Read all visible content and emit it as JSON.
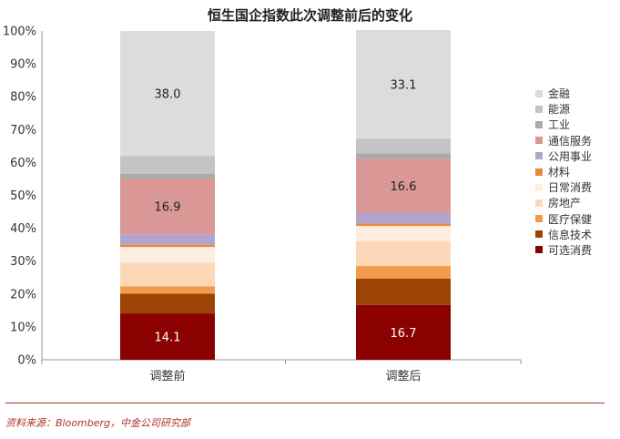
{
  "chart_data": {
    "type": "bar",
    "stacked": true,
    "title": "恒生国企指数此次调整前后的变化",
    "categories": [
      "调整前",
      "调整后"
    ],
    "ylim": [
      0,
      100
    ],
    "yticks": [
      "0%",
      "10%",
      "20%",
      "30%",
      "40%",
      "50%",
      "60%",
      "70%",
      "80%",
      "90%",
      "100%"
    ],
    "legend_position": "right",
    "series": [
      {
        "name": "可选消费",
        "color": "#8b0000",
        "values": [
          14.1,
          16.7
        ],
        "labels": [
          "14.1",
          "16.7"
        ]
      },
      {
        "name": "信息技术",
        "color": "#9c4306",
        "values": [
          6.0,
          8.0
        ],
        "labels": [
          "",
          ""
        ]
      },
      {
        "name": "医疗保健",
        "color": "#f39a4c",
        "values": [
          2.2,
          3.8
        ],
        "labels": [
          "",
          ""
        ]
      },
      {
        "name": "房地产",
        "color": "#fcd8b8",
        "values": [
          7.2,
          7.6
        ],
        "labels": [
          "",
          ""
        ]
      },
      {
        "name": "日常消费",
        "color": "#fdeee0",
        "values": [
          4.8,
          4.6
        ],
        "labels": [
          "",
          ""
        ]
      },
      {
        "name": "材料",
        "color": "#e8893a",
        "values": [
          0.7,
          0.7
        ],
        "labels": [
          "",
          ""
        ]
      },
      {
        "name": "公用事业",
        "color": "#b2a4cc",
        "values": [
          3.2,
          3.2
        ],
        "labels": [
          "",
          ""
        ]
      },
      {
        "name": "通信服务",
        "color": "#d99795",
        "values": [
          16.9,
          16.6
        ],
        "labels": [
          "16.9",
          "16.6"
        ]
      },
      {
        "name": "工业",
        "color": "#aaaaaa",
        "values": [
          1.5,
          1.6
        ],
        "labels": [
          "",
          ""
        ]
      },
      {
        "name": "能源",
        "color": "#c4c4c4",
        "values": [
          5.4,
          4.4
        ],
        "labels": [
          "",
          ""
        ]
      },
      {
        "name": "金融",
        "color": "#dcdcdc",
        "values": [
          38.0,
          33.1
        ],
        "labels": [
          "38.0",
          "33.1"
        ]
      }
    ]
  },
  "source": "资料来源：Bloomberg，中金公司研究部"
}
